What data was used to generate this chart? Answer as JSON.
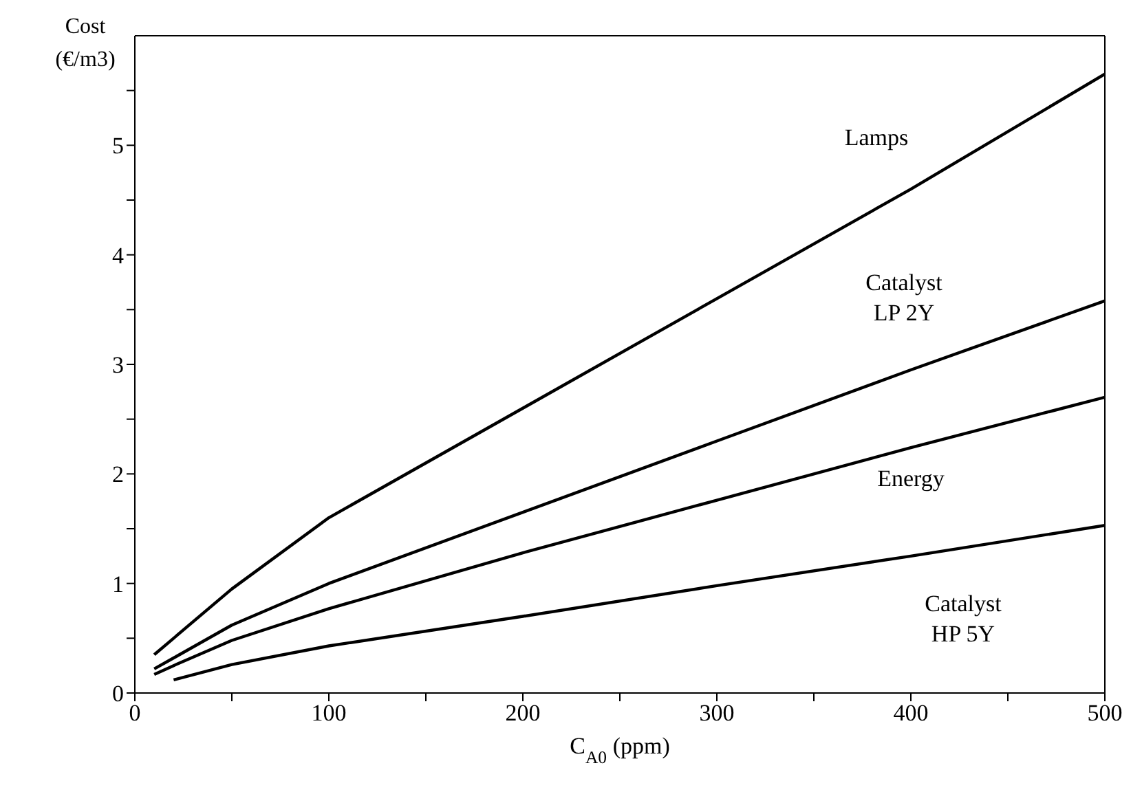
{
  "chart_data": {
    "type": "line",
    "xlabel": "C$_{A0}$ (ppm)",
    "ylabel": "Cost\n(€/m3)",
    "x": [
      10,
      20,
      50,
      100,
      200,
      300,
      400,
      500
    ],
    "series": [
      {
        "name": "Lamps",
        "color": "#000000",
        "values": [
          0.35,
          0.5,
          0.95,
          1.6,
          2.6,
          3.6,
          4.6,
          5.65
        ]
      },
      {
        "name": "Catalyst\nLP 2Y",
        "color": "#000000",
        "values": [
          0.22,
          0.32,
          0.62,
          1.0,
          1.65,
          2.3,
          2.95,
          3.58
        ]
      },
      {
        "name": "Energy",
        "color": "#000000",
        "values": [
          0.17,
          0.25,
          0.48,
          0.77,
          1.28,
          1.76,
          2.24,
          2.7
        ]
      },
      {
        "name": "Catalyst\nHP 5Y",
        "color": "#000000",
        "values": [
          null,
          0.12,
          0.26,
          0.43,
          0.7,
          0.98,
          1.25,
          1.53
        ]
      }
    ],
    "xlim": [
      0,
      500
    ],
    "ylim": [
      0,
      6
    ],
    "xticks": [
      0,
      {
        "value": 50,
        "label": null
      },
      100,
      {
        "value": 150,
        "label": null
      },
      200,
      {
        "value": 250,
        "label": null
      },
      300,
      {
        "value": 350,
        "label": null
      },
      400,
      {
        "value": 450,
        "label": null
      },
      500
    ],
    "yticks": [
      0,
      {
        "value": 0.5,
        "label": null
      },
      1,
      {
        "value": 1.5,
        "label": null
      },
      2,
      {
        "value": 2.5,
        "label": null
      },
      3,
      {
        "value": 3.5,
        "label": null
      },
      4,
      {
        "value": 4.5,
        "label": null
      },
      5,
      {
        "value": 5.5,
        "label": null
      }
    ],
    "grid": false,
    "legend": false,
    "marker": "none",
    "line_style": "solid"
  }
}
